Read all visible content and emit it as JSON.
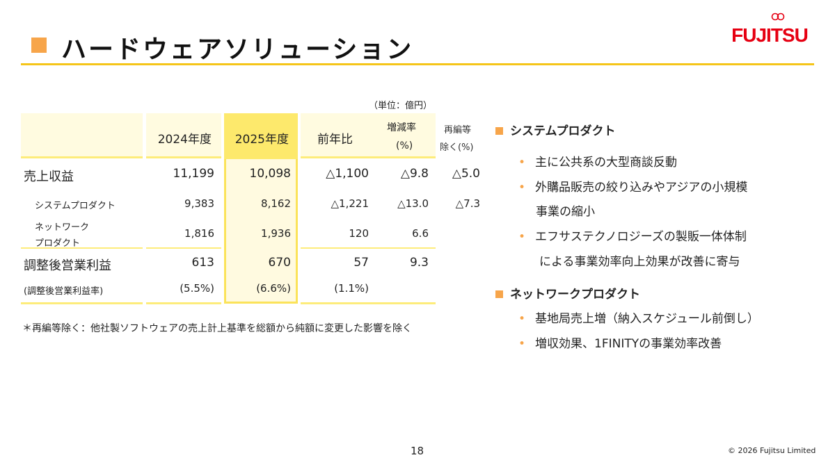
{
  "title": "ハードウェアソリューション",
  "logo": "FUJITSU",
  "unit": "（単位：億円）",
  "table": {
    "headers": {
      "y2024": "2024年度",
      "y2025": "2025年度",
      "yoy": "前年比",
      "rate_1": "増減率",
      "rate_2": "(%)",
      "excl_1": "再編等",
      "excl_2": "除く(%)"
    },
    "rows": [
      {
        "label": "売上収益",
        "y2024": "11,199",
        "y2025": "10,098",
        "yoy": "△1,100",
        "rate": "△9.8",
        "excl": "△5.0"
      },
      {
        "label": "システムプロダクト",
        "y2024": "9,383",
        "y2025": "8,162",
        "yoy": "△1,221",
        "rate": "△13.0",
        "excl": "△7.3"
      },
      {
        "label_1": "ネットワーク",
        "label_2": "プロダクト",
        "y2024": "1,816",
        "y2025": "1,936",
        "yoy": "120",
        "rate": "6.6"
      },
      {
        "label": "調整後営業利益",
        "y2024": "613",
        "y2025": "670",
        "yoy": "57",
        "rate": "9.3"
      },
      {
        "label": "(調整後営業利益率)",
        "y2024": "(5.5%)",
        "y2025": "(6.6%)",
        "yoy": "(1.1%)"
      }
    ]
  },
  "note": "＊再編等除く：他社製ソフトウェアの売上計上基準を総額から純額に変更した影響を除く",
  "sections": [
    {
      "title": "システムプロダクト",
      "bullets": [
        "主に公共系の大型商談反動",
        "外購品販売の絞り込みやアジアの小規模",
        "事業の縮小",
        "エフサステクノロジーズの製販一体体制",
        "による事業効率向上効果が改善に寄与"
      ]
    },
    {
      "title": "ネットワークプロダクト",
      "bullets": [
        "基地局売上増（納入スケジュール前倒し）",
        "増収効果、1FINITYの事業効率改善"
      ]
    }
  ],
  "bullet_char": "•",
  "page": "18",
  "copyright": "© 2026 Fujitsu Limited"
}
